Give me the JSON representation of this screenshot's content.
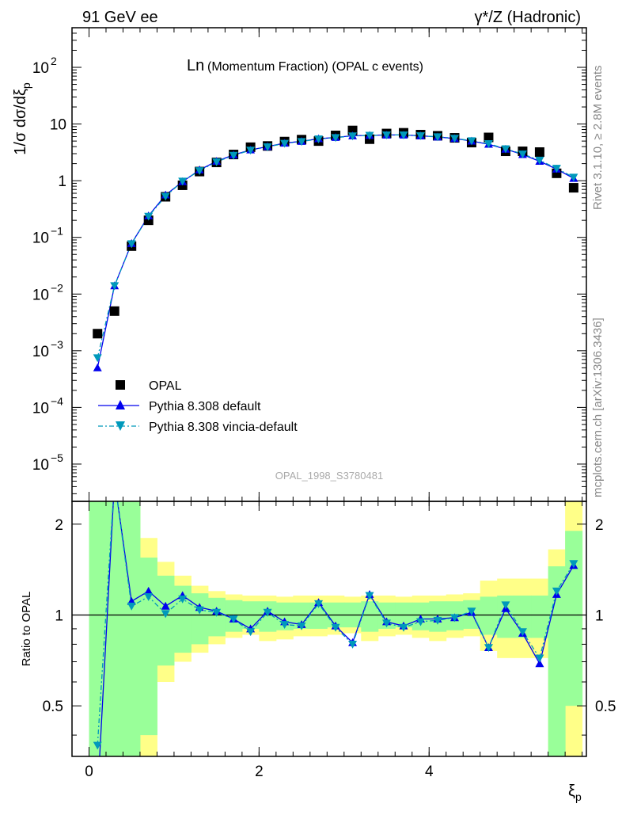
{
  "header": {
    "left_label": "91 GeV ee",
    "right_label": "γ*/Z (Hadronic)"
  },
  "side_labels": {
    "rivet": "Rivet 3.1.10, ≥ 2.8M events",
    "mcplots": "mcplots.cern.ch [arXiv:1306.3436]"
  },
  "chart_data": [
    {
      "type": "scatter",
      "panel": "main",
      "title": "Ln(Momentum Fraction) (OPAL c events)",
      "title_main": "Ln",
      "title_rest": "(Momentum Fraction) (OPAL c events)",
      "watermark": "OPAL_1998_S3780481",
      "ylabel": "1/σ dσ/dξp",
      "xlim": [
        -0.2,
        5.85
      ],
      "ylim": [
        2.2e-06,
        500
      ],
      "yscale": "log",
      "yticks": [
        {
          "v": 1e-05,
          "base": "10",
          "exp": "−5"
        },
        {
          "v": 0.0001,
          "base": "10",
          "exp": "−4"
        },
        {
          "v": 0.001,
          "base": "10",
          "exp": "−3"
        },
        {
          "v": 0.01,
          "base": "10",
          "exp": "−2"
        },
        {
          "v": 0.1,
          "base": "10",
          "exp": "−1"
        },
        {
          "v": 1,
          "base": "1",
          "exp": ""
        },
        {
          "v": 10,
          "base": "10",
          "exp": ""
        },
        {
          "v": 100,
          "base": "10",
          "exp": "2"
        }
      ],
      "legend_position": "bottom-left",
      "x": [
        0.1,
        0.3,
        0.5,
        0.7,
        0.9,
        1.1,
        1.3,
        1.5,
        1.7,
        1.9,
        2.1,
        2.3,
        2.5,
        2.7,
        2.9,
        3.1,
        3.3,
        3.5,
        3.7,
        3.9,
        4.1,
        4.3,
        4.5,
        4.7,
        4.9,
        5.1,
        5.3,
        5.5,
        5.7
      ],
      "series": [
        {
          "name": "OPAL",
          "color": "#000000",
          "marker": "square",
          "values": [
            0.002,
            0.005,
            0.07,
            0.2,
            0.52,
            0.83,
            1.45,
            2.1,
            2.9,
            3.9,
            4.1,
            4.9,
            5.3,
            5.0,
            6.3,
            7.7,
            5.4,
            6.8,
            7.0,
            6.5,
            6.2,
            5.7,
            4.7,
            5.8,
            3.3,
            3.3,
            3.2,
            1.35,
            0.75
          ]
        },
        {
          "name": "Pythia 8.308 default",
          "color": "#0000ee",
          "marker": "triangle-up",
          "values": [
            0.0005,
            0.014,
            0.078,
            0.24,
            0.56,
            0.96,
            1.55,
            2.2,
            2.85,
            3.5,
            4.0,
            4.6,
            4.95,
            5.5,
            5.8,
            6.2,
            6.3,
            6.4,
            6.4,
            6.2,
            5.9,
            5.55,
            5.0,
            4.4,
            3.6,
            2.9,
            2.2,
            1.6,
            1.1
          ]
        },
        {
          "name": "Pythia 8.308 vincia-default",
          "color": "#0099bb",
          "marker": "triangle-down",
          "values": [
            0.00075,
            0.014,
            0.077,
            0.235,
            0.53,
            0.98,
            1.5,
            2.15,
            2.8,
            3.45,
            3.95,
            4.55,
            4.9,
            5.45,
            5.75,
            6.15,
            6.3,
            6.4,
            6.4,
            6.2,
            5.95,
            5.6,
            5.05,
            4.5,
            3.65,
            2.95,
            2.3,
            1.65,
            1.15
          ]
        }
      ]
    },
    {
      "type": "line",
      "panel": "ratio",
      "ylabel": "Ratio to OPAL",
      "xlabel": "ξp",
      "xlim": [
        -0.2,
        5.85
      ],
      "ylim": [
        0.34,
        2.38
      ],
      "yscale": "log",
      "yticks": [
        0.5,
        1,
        2
      ],
      "xticks": [
        0,
        2,
        4
      ],
      "reference_line": 1,
      "bin_edges": [
        0,
        0.2,
        0.4,
        0.6,
        0.8,
        1.0,
        1.2,
        1.4,
        1.6,
        1.8,
        2.0,
        2.2,
        2.4,
        2.6,
        2.8,
        3.0,
        3.2,
        3.4,
        3.6,
        3.8,
        4.0,
        4.2,
        4.4,
        4.6,
        4.8,
        5.0,
        5.2,
        5.4,
        5.6,
        5.8
      ],
      "bands": [
        {
          "name": "total uncertainty",
          "color": "#ffff88",
          "lower": [
            0.3,
            0.3,
            0.3,
            0.3,
            0.6,
            0.7,
            0.75,
            0.8,
            0.84,
            0.86,
            0.82,
            0.83,
            0.85,
            0.85,
            0.86,
            0.87,
            0.82,
            0.85,
            0.86,
            0.84,
            0.82,
            0.84,
            0.85,
            0.76,
            0.72,
            0.72,
            0.72,
            0.3,
            0.3
          ],
          "upper": [
            2.38,
            2.38,
            2.38,
            1.8,
            1.5,
            1.35,
            1.25,
            1.2,
            1.17,
            1.16,
            1.16,
            1.15,
            1.16,
            1.16,
            1.16,
            1.15,
            1.16,
            1.16,
            1.15,
            1.16,
            1.16,
            1.17,
            1.18,
            1.3,
            1.32,
            1.32,
            1.32,
            1.65,
            2.38
          ]
        },
        {
          "name": "stat uncertainty",
          "color": "#99ff99",
          "lower": [
            0.3,
            0.3,
            0.3,
            0.4,
            0.68,
            0.75,
            0.8,
            0.85,
            0.88,
            0.9,
            0.88,
            0.89,
            0.9,
            0.9,
            0.91,
            0.91,
            0.88,
            0.9,
            0.91,
            0.89,
            0.88,
            0.89,
            0.9,
            0.86,
            0.84,
            0.84,
            0.84,
            0.3,
            0.5
          ],
          "upper": [
            2.38,
            2.38,
            2.38,
            1.55,
            1.35,
            1.25,
            1.18,
            1.14,
            1.12,
            1.11,
            1.11,
            1.1,
            1.1,
            1.1,
            1.1,
            1.1,
            1.11,
            1.1,
            1.1,
            1.1,
            1.11,
            1.11,
            1.12,
            1.15,
            1.16,
            1.16,
            1.16,
            1.45,
            1.9
          ]
        }
      ],
      "x": [
        0.1,
        0.3,
        0.5,
        0.7,
        0.9,
        1.1,
        1.3,
        1.5,
        1.7,
        1.9,
        2.1,
        2.3,
        2.5,
        2.7,
        2.9,
        3.1,
        3.3,
        3.5,
        3.7,
        3.9,
        4.1,
        4.3,
        4.5,
        4.7,
        4.9,
        5.1,
        5.3,
        5.5,
        5.7
      ],
      "series": [
        {
          "name": "Pythia 8.308 default",
          "color": "#0000ee",
          "marker": "triangle-up",
          "values": [
            0.25,
            2.8,
            1.11,
            1.2,
            1.07,
            1.16,
            1.06,
            1.03,
            0.97,
            0.9,
            1.03,
            0.95,
            0.93,
            1.1,
            0.92,
            0.81,
            1.17,
            0.95,
            0.92,
            0.97,
            0.97,
            0.98,
            1.02,
            0.78,
            1.05,
            0.87,
            0.69,
            1.17,
            1.46
          ]
        },
        {
          "name": "Pythia 8.308 vincia-default",
          "color": "#0099bb",
          "marker": "triangle-down",
          "values": [
            0.37,
            2.8,
            1.07,
            1.15,
            1.01,
            1.13,
            1.04,
            1.02,
            0.97,
            0.88,
            1.02,
            0.93,
            0.92,
            1.09,
            0.91,
            0.8,
            1.16,
            0.94,
            0.91,
            0.95,
            0.96,
            0.98,
            1.03,
            0.78,
            1.08,
            0.88,
            0.72,
            1.2,
            1.48
          ]
        }
      ]
    }
  ]
}
